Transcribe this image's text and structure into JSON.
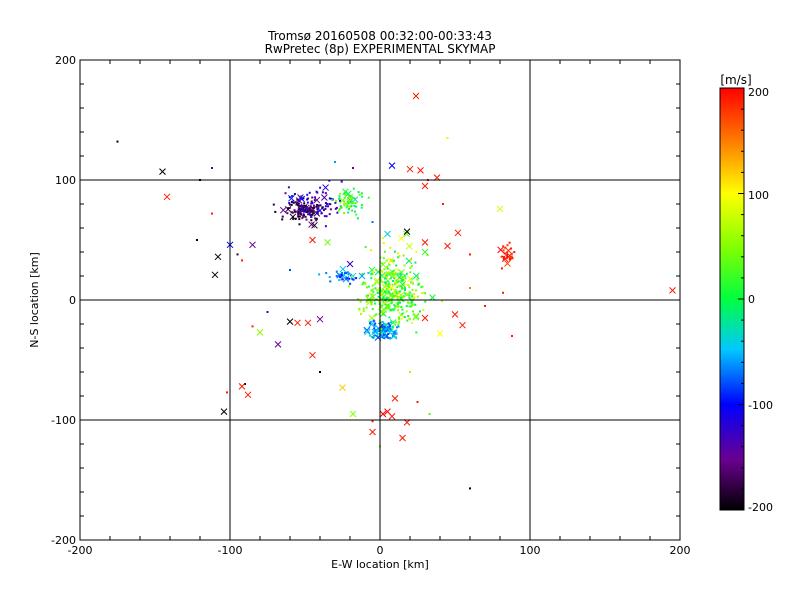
{
  "chart_data": {
    "type": "scatter",
    "title": "Tromsø 20160508 00:32:00-00:33:43",
    "subtitle": "RwPretec (8p) EXPERIMENTAL SKYMAP",
    "xlabel": "E-W location [km]",
    "ylabel": "N-S location [km]",
    "xlim": [
      -200,
      200
    ],
    "ylim": [
      -200,
      200
    ],
    "x_ticks": [
      "-200",
      "-100",
      "0",
      "100",
      "200"
    ],
    "y_ticks": [
      "200",
      "100",
      "0",
      "-100",
      "-200"
    ],
    "grid": true,
    "colorbar": {
      "label": "[m/s]",
      "min": -200,
      "max": 200,
      "ticks": [
        "200",
        "100",
        "0",
        "-100",
        "-200"
      ],
      "colormap": "rainbow"
    },
    "clusters": [
      {
        "cx": -50,
        "cy": 75,
        "sx": 14,
        "sy": 9,
        "n": 120,
        "vmin": -200,
        "vmax": -150
      },
      {
        "cx": -42,
        "cy": 82,
        "sx": 18,
        "sy": 12,
        "n": 60,
        "vmin": -150,
        "vmax": -90
      },
      {
        "cx": -20,
        "cy": 82,
        "sx": 8,
        "sy": 9,
        "n": 60,
        "vmin": -30,
        "vmax": 60
      },
      {
        "cx": 8,
        "cy": 5,
        "sx": 15,
        "sy": 22,
        "n": 280,
        "vmin": -20,
        "vmax": 70
      },
      {
        "cx": 2,
        "cy": -25,
        "sx": 9,
        "sy": 6,
        "n": 110,
        "vmin": -85,
        "vmax": -30
      },
      {
        "cx": -25,
        "cy": 20,
        "sx": 10,
        "sy": 4,
        "n": 40,
        "vmin": -100,
        "vmax": -40
      },
      {
        "cx": 10,
        "cy": 15,
        "sx": 22,
        "sy": 30,
        "n": 90,
        "vmin": 20,
        "vmax": 120
      },
      {
        "cx": 85,
        "cy": 38,
        "sx": 4,
        "sy": 8,
        "n": 30,
        "vmin": 170,
        "vmax": 200
      }
    ],
    "markers": [
      {
        "x": 24,
        "y": 170,
        "v": 190
      },
      {
        "x": -145,
        "y": 107,
        "v": -200
      },
      {
        "x": -142,
        "y": 86,
        "v": 190
      },
      {
        "x": -108,
        "y": 36,
        "v": -200
      },
      {
        "x": -110,
        "y": 21,
        "v": -200
      },
      {
        "x": -100,
        "y": 46,
        "v": -100
      },
      {
        "x": -85,
        "y": 46,
        "v": -150
      },
      {
        "x": -60,
        "y": -18,
        "v": -200
      },
      {
        "x": -55,
        "y": -19,
        "v": 190
      },
      {
        "x": -48,
        "y": -19,
        "v": 190
      },
      {
        "x": -40,
        "y": -16,
        "v": -150
      },
      {
        "x": -45,
        "y": -46,
        "v": 190
      },
      {
        "x": -80,
        "y": -27,
        "v": 50
      },
      {
        "x": -92,
        "y": -72,
        "v": 190
      },
      {
        "x": -88,
        "y": -79,
        "v": 190
      },
      {
        "x": -104,
        "y": -93,
        "v": -200
      },
      {
        "x": -18,
        "y": -95,
        "v": 50
      },
      {
        "x": -25,
        "y": -73,
        "v": 120
      },
      {
        "x": -5,
        "y": -110,
        "v": 190
      },
      {
        "x": 2,
        "y": -95,
        "v": 200
      },
      {
        "x": 5,
        "y": -93,
        "v": 200
      },
      {
        "x": 8,
        "y": -97,
        "v": 190
      },
      {
        "x": 15,
        "y": -115,
        "v": 190
      },
      {
        "x": 18,
        "y": -102,
        "v": 190
      },
      {
        "x": 10,
        "y": -82,
        "v": 190
      },
      {
        "x": 20,
        "y": 109,
        "v": 190
      },
      {
        "x": 27,
        "y": 108,
        "v": 190
      },
      {
        "x": 30,
        "y": 95,
        "v": 190
      },
      {
        "x": 38,
        "y": 102,
        "v": 190
      },
      {
        "x": 30,
        "y": 48,
        "v": 190
      },
      {
        "x": 45,
        "y": 45,
        "v": 190
      },
      {
        "x": 80,
        "y": 76,
        "v": 80
      },
      {
        "x": 18,
        "y": 57,
        "v": -200
      },
      {
        "x": 15,
        "y": 13,
        "v": 20
      },
      {
        "x": 30,
        "y": -15,
        "v": 190
      },
      {
        "x": 50,
        "y": -12,
        "v": 190
      },
      {
        "x": 55,
        "y": -21,
        "v": 190
      },
      {
        "x": 40,
        "y": -28,
        "v": 100
      },
      {
        "x": -35,
        "y": 48,
        "v": 40
      },
      {
        "x": -45,
        "y": 50,
        "v": 190
      },
      {
        "x": -68,
        "y": -37,
        "v": -150
      },
      {
        "x": 195,
        "y": 8,
        "v": 190
      },
      {
        "x": 52,
        "y": 56,
        "v": 190
      },
      {
        "x": 8,
        "y": 112,
        "v": -100
      },
      {
        "x": 5,
        "y": 55,
        "v": -40
      },
      {
        "x": 30,
        "y": 40,
        "v": 20
      },
      {
        "x": -20,
        "y": 30,
        "v": -130
      },
      {
        "x": -12,
        "y": 20,
        "v": -60
      },
      {
        "x": 35,
        "y": 2,
        "v": 0
      }
    ],
    "sparse_points": [
      {
        "x": -175,
        "y": 132,
        "v": -200
      },
      {
        "x": -112,
        "y": 110,
        "v": -130
      },
      {
        "x": -120,
        "y": 100,
        "v": -200
      },
      {
        "x": -112,
        "y": 72,
        "v": 190
      },
      {
        "x": -122,
        "y": 50,
        "v": -200
      },
      {
        "x": -95,
        "y": 38,
        "v": -180
      },
      {
        "x": -92,
        "y": 33,
        "v": 190
      },
      {
        "x": -85,
        "y": -22,
        "v": 190
      },
      {
        "x": -90,
        "y": -70,
        "v": -200
      },
      {
        "x": -102,
        "y": -77,
        "v": 190
      },
      {
        "x": -40,
        "y": -60,
        "v": -200
      },
      {
        "x": 60,
        "y": -157,
        "v": -200
      },
      {
        "x": 45,
        "y": 135,
        "v": 90
      },
      {
        "x": 32,
        "y": 100,
        "v": 190
      },
      {
        "x": 60,
        "y": 38,
        "v": 190
      },
      {
        "x": 70,
        "y": -5,
        "v": 190
      },
      {
        "x": 88,
        "y": -30,
        "v": 190
      },
      {
        "x": 25,
        "y": -85,
        "v": 190
      },
      {
        "x": 33,
        "y": -95,
        "v": 30
      },
      {
        "x": 0,
        "y": -122,
        "v": 30
      },
      {
        "x": -5,
        "y": -101,
        "v": 190
      },
      {
        "x": -18,
        "y": 110,
        "v": -150
      },
      {
        "x": -30,
        "y": 115,
        "v": -60
      },
      {
        "x": 60,
        "y": 10,
        "v": 150
      },
      {
        "x": 82,
        "y": 6,
        "v": 190
      },
      {
        "x": -60,
        "y": 25,
        "v": -80
      },
      {
        "x": -75,
        "y": -10,
        "v": -160
      },
      {
        "x": 20,
        "y": -60,
        "v": 60
      },
      {
        "x": 42,
        "y": 80,
        "v": 190
      },
      {
        "x": -5,
        "y": 65,
        "v": -70
      }
    ]
  }
}
